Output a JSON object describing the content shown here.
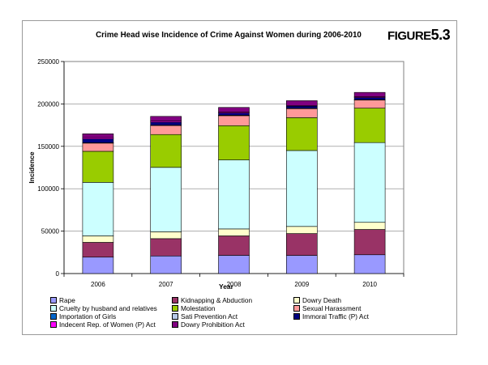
{
  "figure_label": {
    "word": "FIGURE",
    "number": "5.3"
  },
  "chart_data": {
    "type": "bar",
    "stacked": true,
    "title": "Crime Head wise Incidence of Crime Against Women during 2006-2010",
    "xlabel": "Year",
    "ylabel": "Incidence",
    "ylim": [
      0,
      250000
    ],
    "yticks": [
      "0",
      "50000",
      "100000",
      "150000",
      "200000",
      "250000"
    ],
    "categories": [
      "2006",
      "2007",
      "2008",
      "2009",
      "2010"
    ],
    "series": [
      {
        "name": "Rape",
        "color": "#9999ff",
        "values": [
          19348,
          20737,
          21467,
          21397,
          22172
        ]
      },
      {
        "name": "Kidnapping & Abduction",
        "color": "#993366",
        "values": [
          17414,
          20416,
          22939,
          25741,
          29795
        ]
      },
      {
        "name": "Dowry Death",
        "color": "#ffffcc",
        "values": [
          7618,
          8093,
          8172,
          8383,
          8391
        ]
      },
      {
        "name": "Cruelty by husband and relatives",
        "color": "#ccffff",
        "values": [
          63128,
          75930,
          81344,
          89546,
          94041
        ]
      },
      {
        "name": "Molestation",
        "color": "#99cc00",
        "values": [
          36617,
          38734,
          40413,
          38711,
          40613
        ]
      },
      {
        "name": "Sexual Harassment",
        "color": "#ff9999",
        "values": [
          9966,
          10950,
          12214,
          11009,
          9961
        ]
      },
      {
        "name": "Importation of Girls",
        "color": "#0066cc",
        "values": [
          67,
          61,
          67,
          48,
          36
        ]
      },
      {
        "name": "Sati Prevention Act",
        "color": "#b7c9e8",
        "values": [
          0,
          0,
          1,
          0,
          0
        ]
      },
      {
        "name": "Immoral Traffic (P) Act",
        "color": "#000080",
        "values": [
          4541,
          3568,
          2659,
          2474,
          2499
        ]
      },
      {
        "name": "Indecent Rep. of Women (P) Act",
        "color": "#ff00ff",
        "values": [
          1562,
          1200,
          1025,
          845,
          895
        ]
      },
      {
        "name": "Dowry Prohibition Act",
        "color": "#800080",
        "values": [
          4504,
          5623,
          5555,
          5650,
          5182
        ]
      }
    ],
    "legend_position": "bottom"
  }
}
